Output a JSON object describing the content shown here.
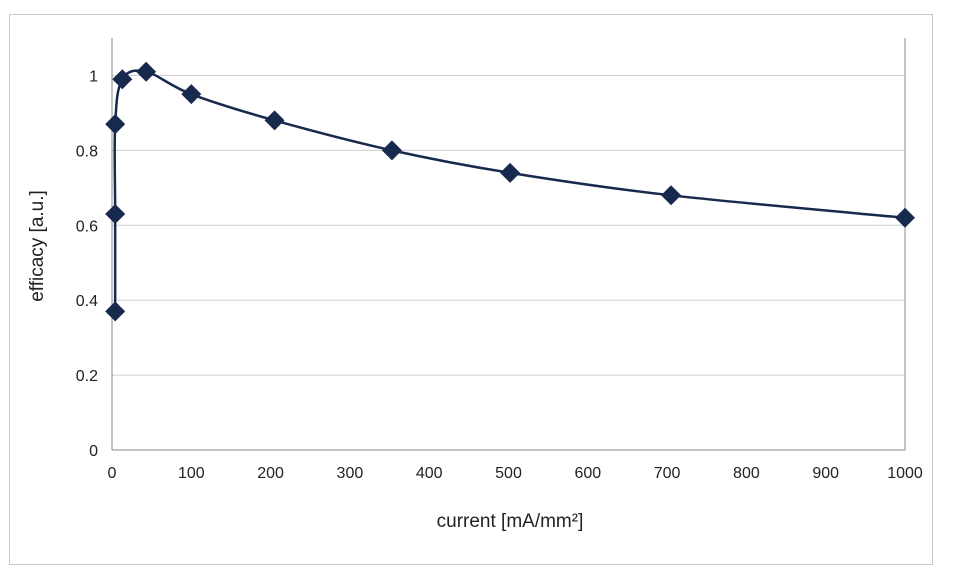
{
  "chart_data": {
    "type": "scatter",
    "xlabel": "current [mA/mm²]",
    "ylabel": "efficacy [a.u.]",
    "xlim": [
      0,
      1000
    ],
    "ylim": [
      0,
      1.1
    ],
    "x_ticks": [
      "0",
      "100",
      "200",
      "300",
      "400",
      "500",
      "600",
      "700",
      "800",
      "900",
      "1000"
    ],
    "y_ticks": [
      "0",
      "0.2",
      "0.4",
      "0.6",
      "0.8",
      "1"
    ],
    "grid": "horizontal",
    "legend": "none",
    "series": [
      {
        "x": [
          4,
          4,
          4,
          13,
          43,
          100,
          205,
          353,
          502,
          705,
          1000
        ],
        "y": [
          0.37,
          0.63,
          0.87,
          0.99,
          1.01,
          0.95,
          0.88,
          0.8,
          0.74,
          0.68,
          0.62
        ],
        "marker": "diamond",
        "line": "smooth"
      }
    ],
    "colors": {
      "series": "#17294d",
      "grid": "#cfcfcf",
      "axis": "#888888"
    }
  }
}
